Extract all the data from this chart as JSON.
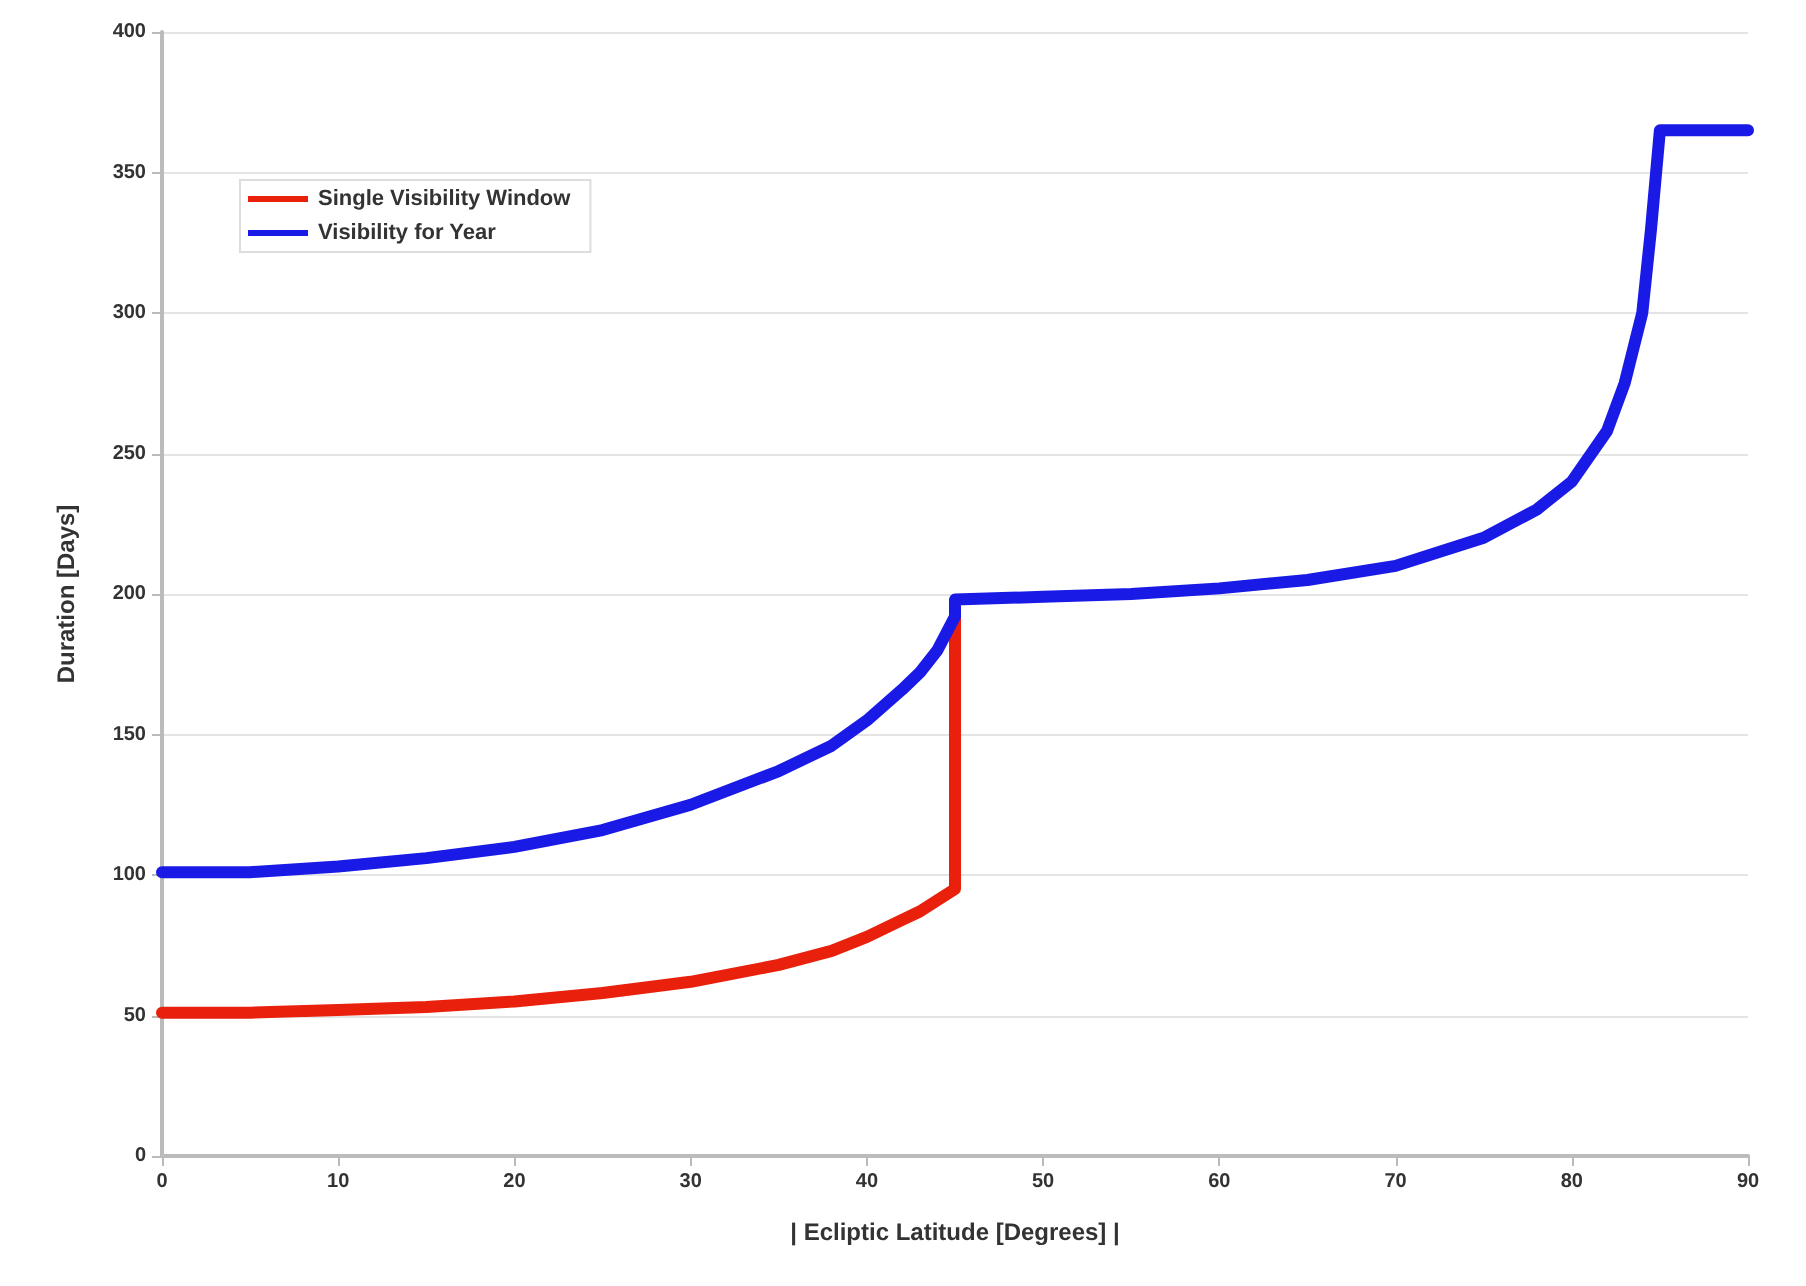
{
  "chart_data": {
    "type": "line",
    "xlabel": "| Ecliptic Latitude [Degrees] |",
    "ylabel": "Duration [Days]",
    "xlim": [
      0,
      90
    ],
    "xticks": [
      0,
      10,
      20,
      30,
      40,
      50,
      60,
      70,
      80,
      90
    ],
    "ylim": [
      0,
      400
    ],
    "yticks": [
      0,
      50,
      100,
      150,
      200,
      250,
      300,
      350,
      400
    ],
    "grid": "y",
    "legend": "top left",
    "marker": "none",
    "line_style": "solid",
    "series": [
      {
        "name": "Single Visibility Window",
        "color": "#e8200c",
        "x": [
          0,
          5,
          10,
          15,
          20,
          25,
          30,
          35,
          38,
          40,
          42,
          43,
          44,
          45,
          45
        ],
        "values": [
          51,
          51,
          52,
          53,
          55,
          58,
          62,
          68,
          73,
          78,
          84,
          87,
          91,
          95,
          195
        ]
      },
      {
        "name": "Visibility for Year",
        "color": "#1a1ae6",
        "x": [
          0,
          5,
          10,
          15,
          20,
          25,
          30,
          35,
          38,
          40,
          42,
          43,
          44,
          45,
          45,
          50,
          55,
          60,
          65,
          70,
          75,
          78,
          80,
          82,
          83,
          84,
          84.5,
          85,
          90
        ],
        "values": [
          101,
          101,
          103,
          106,
          110,
          116,
          125,
          137,
          146,
          155,
          166,
          172,
          180,
          192,
          198,
          199,
          200,
          202,
          205,
          210,
          220,
          230,
          240,
          258,
          275,
          300,
          330,
          365,
          365
        ]
      }
    ]
  }
}
